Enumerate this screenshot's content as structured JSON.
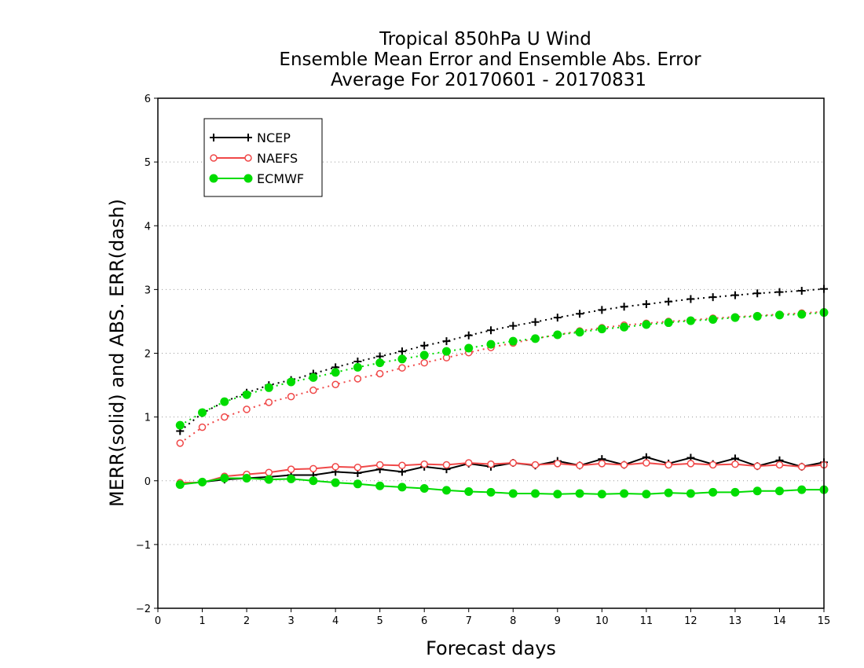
{
  "chart_data": {
    "type": "line",
    "title": [
      "Tropical 850hPa U Wind",
      "Ensemble Mean Error and Ensemble Abs. Error",
      "Average For 20170601 - 20170831"
    ],
    "xlabel": "Forecast days",
    "ylabel": "MERR(solid) and ABS. ERR(dash)",
    "xlim": [
      0,
      15
    ],
    "ylim": [
      -2,
      6
    ],
    "xticks": [
      "0",
      "1",
      "2",
      "3",
      "4",
      "5",
      "6",
      "7",
      "8",
      "9",
      "10",
      "11",
      "12",
      "13",
      "14",
      "15"
    ],
    "yticks": [
      "−2",
      "−1",
      "0",
      "1",
      "2",
      "3",
      "4",
      "5",
      "6"
    ],
    "grid": "horizontal dotted",
    "legend_position": "top-left",
    "x": [
      0.5,
      1,
      1.5,
      2,
      2.5,
      3,
      3.5,
      4,
      4.5,
      5,
      5.5,
      6,
      6.5,
      7,
      7.5,
      8,
      8.5,
      9,
      9.5,
      10,
      10.5,
      11,
      11.5,
      12,
      12.5,
      13,
      13.5,
      14,
      14.5,
      15
    ],
    "series": [
      {
        "name": "NCEP",
        "color": "#000000",
        "marker": "plus",
        "merr": [
          -0.05,
          -0.02,
          0.02,
          0.04,
          0.06,
          0.09,
          0.09,
          0.14,
          0.12,
          0.18,
          0.14,
          0.22,
          0.18,
          0.27,
          0.22,
          0.28,
          0.24,
          0.31,
          0.24,
          0.34,
          0.25,
          0.37,
          0.27,
          0.36,
          0.26,
          0.35,
          0.23,
          0.32,
          0.22,
          0.29
        ],
        "abs_err": [
          0.78,
          1.06,
          1.24,
          1.38,
          1.5,
          1.58,
          1.68,
          1.78,
          1.87,
          1.95,
          2.03,
          2.12,
          2.19,
          2.28,
          2.36,
          2.43,
          2.49,
          2.56,
          2.62,
          2.68,
          2.73,
          2.77,
          2.81,
          2.85,
          2.88,
          2.91,
          2.94,
          2.96,
          2.98,
          3.01
        ]
      },
      {
        "name": "NAEFS",
        "color": "#f04848",
        "marker": "open-circle",
        "merr": [
          -0.03,
          -0.03,
          0.07,
          0.1,
          0.13,
          0.18,
          0.19,
          0.22,
          0.21,
          0.25,
          0.24,
          0.26,
          0.25,
          0.28,
          0.26,
          0.28,
          0.25,
          0.27,
          0.24,
          0.27,
          0.25,
          0.28,
          0.25,
          0.27,
          0.25,
          0.26,
          0.23,
          0.25,
          0.22,
          0.25
        ],
        "abs_err": [
          0.59,
          0.84,
          1.0,
          1.12,
          1.23,
          1.32,
          1.42,
          1.51,
          1.6,
          1.68,
          1.77,
          1.85,
          1.93,
          2.01,
          2.09,
          2.16,
          2.23,
          2.29,
          2.35,
          2.4,
          2.44,
          2.47,
          2.5,
          2.52,
          2.55,
          2.57,
          2.59,
          2.61,
          2.63,
          2.65
        ]
      },
      {
        "name": "ECMWF",
        "color": "#00dc00",
        "marker": "filled-circle",
        "merr": [
          -0.06,
          -0.02,
          0.04,
          0.04,
          0.02,
          0.03,
          0.0,
          -0.03,
          -0.05,
          -0.08,
          -0.1,
          -0.12,
          -0.15,
          -0.17,
          -0.18,
          -0.2,
          -0.2,
          -0.21,
          -0.2,
          -0.21,
          -0.2,
          -0.21,
          -0.19,
          -0.2,
          -0.18,
          -0.18,
          -0.16,
          -0.16,
          -0.14,
          -0.14
        ],
        "abs_err": [
          0.87,
          1.07,
          1.24,
          1.35,
          1.46,
          1.55,
          1.62,
          1.7,
          1.78,
          1.85,
          1.91,
          1.97,
          2.03,
          2.08,
          2.14,
          2.19,
          2.23,
          2.29,
          2.33,
          2.38,
          2.41,
          2.45,
          2.48,
          2.51,
          2.53,
          2.56,
          2.58,
          2.6,
          2.61,
          2.64
        ]
      }
    ]
  }
}
